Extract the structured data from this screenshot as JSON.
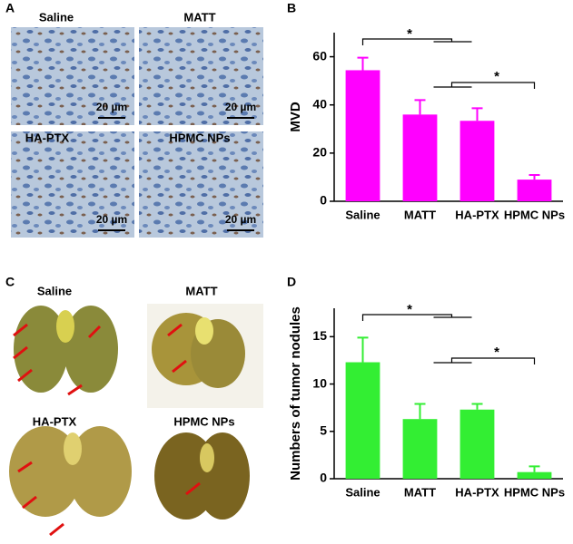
{
  "panel_labels": [
    "A",
    "B",
    "C",
    "D"
  ],
  "micrographs": {
    "labels": [
      "Saline",
      "MATT",
      "HA-PTX",
      "HPMC NPs"
    ],
    "scale_bar": "20 µm"
  },
  "photos": {
    "labels": [
      "Saline",
      "MATT",
      "HA-PTX",
      "HPMC NPs"
    ]
  },
  "chart_data": [
    {
      "type": "bar",
      "y_label": "MVD",
      "categories": [
        "Saline",
        "MATT",
        "HA-PTX",
        "HPMC NPs"
      ],
      "values": [
        54.4,
        36,
        33.4,
        9
      ],
      "errors": [
        5.2,
        6,
        5.2,
        1.9
      ],
      "color": "#ff00ff",
      "ylim": [
        0,
        70
      ],
      "yticks": [
        0,
        20,
        40,
        60
      ],
      "annotations": [
        "*",
        "*"
      ]
    },
    {
      "type": "bar",
      "y_label": "Numbers of tumor nodules",
      "categories": [
        "Saline",
        "MATT",
        "HA-PTX",
        "HPMC NPs"
      ],
      "values": [
        12.3,
        6.3,
        7.3,
        0.7
      ],
      "errors": [
        2.6,
        1.6,
        0.6,
        0.6
      ],
      "color": "#33ee33",
      "ylim": [
        0,
        18
      ],
      "yticks": [
        0,
        5,
        10,
        15
      ],
      "annotations": [
        "*",
        "*"
      ]
    }
  ]
}
